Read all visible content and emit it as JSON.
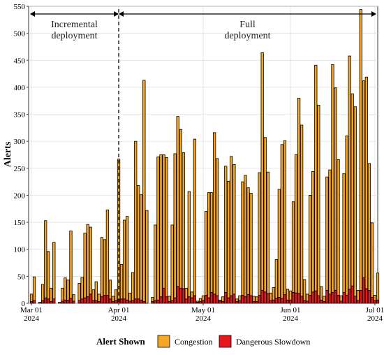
{
  "chart_data": {
    "type": "bar",
    "stacked": true,
    "ylabel": "Alerts",
    "xlabel": "",
    "ylim": [
      0,
      550
    ],
    "y_ticks": [
      0,
      50,
      100,
      150,
      200,
      250,
      300,
      350,
      400,
      450,
      500,
      550
    ],
    "x_ticks": [
      {
        "label1": "Mar 01",
        "label2": "2024",
        "day": 0
      },
      {
        "label1": "Apr 01",
        "label2": "2024",
        "day": 31
      },
      {
        "label1": "May 01",
        "label2": "2024",
        "day": 61
      },
      {
        "label1": "Jun 01",
        "label2": "2024",
        "day": 92
      },
      {
        "label1": "Jul 01",
        "label2": "2024",
        "day": 122
      }
    ],
    "x_start": "2024-03-01",
    "x_end": "2024-07-01",
    "grid": true,
    "phases": [
      {
        "label_lines": [
          "Incremental",
          "deployment"
        ],
        "start_day": 0,
        "end_day": 31
      },
      {
        "label_lines": [
          "Full",
          "deployment"
        ],
        "start_day": 31,
        "end_day": 122
      }
    ],
    "divider_day": 31,
    "legend": {
      "title": "Alert Shown",
      "position": "bottom",
      "items": [
        {
          "name": "Congestion",
          "color": "#F5A623"
        },
        {
          "name": "Dangerous Slowdown",
          "color": "#E8151B"
        }
      ]
    },
    "series": [
      {
        "name": "Congestion",
        "color": "#F5A623",
        "values": [
          14,
          44,
          0,
          2,
          30,
          143,
          88,
          25,
          105,
          0,
          2,
          24,
          41,
          37,
          125,
          12,
          0,
          32,
          40,
          120,
          134,
          124,
          20,
          35,
          14,
          110,
          103,
          158,
          35,
          10,
          20,
          260,
          64,
          146,
          155,
          15,
          52,
          292,
          210,
          195,
          410,
          172,
          0,
          8,
          140,
          265,
          263,
          247,
          258,
          10,
          140,
          267,
          315,
          294,
          252,
          20,
          195,
          11,
          290,
          2,
          6,
          9,
          155,
          195,
          185,
          299,
          254,
          2,
          9,
          234,
          216,
          258,
          240,
          5,
          9,
          210,
          225,
          198,
          190,
          10,
          9,
          227,
          440,
          286,
          225,
          14,
          23,
          72,
          200,
          285,
          285,
          20,
          17,
          168,
          256,
          362,
          317,
          39,
          13,
          185,
          223,
          418,
          353,
          25,
          10,
          210,
          230,
          422,
          375,
          251,
          10,
          220,
          295,
          432,
          356,
          351,
          19,
          520,
          365,
          392,
          235,
          138,
          10,
          50
        ]
      },
      {
        "name": "Dangerous Slowdown",
        "color": "#E8151B",
        "values": [
          3,
          5,
          0,
          0,
          5,
          10,
          8,
          3,
          8,
          0,
          0,
          4,
          6,
          6,
          9,
          4,
          0,
          5,
          8,
          10,
          12,
          17,
          5,
          5,
          3,
          12,
          15,
          15,
          8,
          3,
          5,
          7,
          8,
          8,
          6,
          4,
          5,
          8,
          8,
          6,
          3,
          0,
          0,
          3,
          5,
          6,
          12,
          28,
          12,
          3,
          5,
          10,
          31,
          28,
          27,
          8,
          12,
          10,
          14,
          2,
          3,
          5,
          15,
          10,
          20,
          17,
          14,
          4,
          3,
          20,
          10,
          14,
          17,
          3,
          5,
          15,
          12,
          16,
          14,
          3,
          3,
          15,
          24,
          21,
          18,
          5,
          6,
          9,
          11,
          9,
          16,
          6,
          6,
          20,
          19,
          18,
          13,
          5,
          4,
          15,
          21,
          23,
          14,
          6,
          3,
          24,
          17,
          20,
          24,
          15,
          4,
          20,
          15,
          26,
          32,
          13,
          5,
          24,
          47,
          27,
          24,
          11,
          5,
          6
        ]
      }
    ]
  }
}
